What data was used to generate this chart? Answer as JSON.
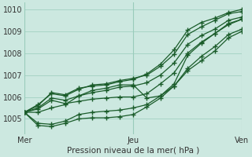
{
  "title": "",
  "xlabel": "Pression niveau de la mer( hPa )",
  "ylabel": "",
  "bg_color": "#cce8e0",
  "grid_color": "#99ccbb",
  "line_color": "#1a5c2a",
  "x_ticks": [
    0,
    8,
    16
  ],
  "x_tick_labels": [
    "Mer",
    "Jeu",
    "Ven"
  ],
  "ylim": [
    1004.3,
    1010.3
  ],
  "xlim": [
    0,
    16
  ],
  "yticks": [
    1005,
    1006,
    1007,
    1008,
    1009,
    1010
  ],
  "series": [
    {
      "x": [
        0,
        1,
        2,
        3,
        4,
        5,
        6,
        7,
        8,
        9,
        10,
        11,
        12,
        13,
        14,
        15,
        16
      ],
      "y": [
        1005.3,
        1005.6,
        1006.2,
        1006.1,
        1006.4,
        1006.5,
        1006.55,
        1006.7,
        1006.8,
        1007.05,
        1007.5,
        1008.15,
        1009.05,
        1009.4,
        1009.6,
        1009.85,
        1010.0
      ]
    },
    {
      "x": [
        0,
        1,
        2,
        3,
        4,
        5,
        6,
        7,
        8,
        9,
        10,
        11,
        12,
        13,
        14,
        15,
        16
      ],
      "y": [
        1005.3,
        1005.65,
        1006.15,
        1006.05,
        1006.35,
        1006.55,
        1006.6,
        1006.75,
        1006.85,
        1007.0,
        1007.4,
        1007.95,
        1008.85,
        1009.2,
        1009.5,
        1009.8,
        1009.9
      ]
    },
    {
      "x": [
        0,
        1,
        2,
        3,
        4,
        5,
        6,
        7,
        8,
        9,
        10,
        11,
        12,
        13,
        14,
        15,
        16
      ],
      "y": [
        1005.3,
        1005.5,
        1005.95,
        1005.85,
        1006.05,
        1006.2,
        1006.3,
        1006.45,
        1006.5,
        1006.65,
        1007.0,
        1007.55,
        1008.4,
        1008.8,
        1009.1,
        1009.5,
        1009.65
      ]
    },
    {
      "x": [
        0,
        1,
        2,
        3,
        4,
        5,
        6,
        7,
        8,
        9,
        10,
        11,
        12,
        13,
        14,
        15,
        16
      ],
      "y": [
        1005.3,
        1005.45,
        1005.85,
        1005.7,
        1005.8,
        1005.9,
        1005.95,
        1006.0,
        1006.0,
        1006.15,
        1006.6,
        1007.1,
        1008.0,
        1008.5,
        1008.9,
        1009.3,
        1009.55
      ]
    },
    {
      "x": [
        0,
        1,
        2,
        3,
        4,
        5,
        6,
        7,
        8,
        9,
        10,
        11,
        12,
        13,
        14,
        15,
        16
      ],
      "y": [
        1005.3,
        1004.8,
        1004.75,
        1004.9,
        1005.2,
        1005.3,
        1005.35,
        1005.4,
        1005.5,
        1005.65,
        1006.05,
        1006.5,
        1007.3,
        1007.85,
        1008.3,
        1008.85,
        1009.1
      ]
    },
    {
      "x": [
        0,
        1,
        2,
        3,
        4,
        5,
        6,
        7,
        8,
        9,
        10,
        11,
        12,
        13,
        14,
        15,
        16
      ],
      "y": [
        1005.3,
        1004.7,
        1004.65,
        1004.8,
        1005.0,
        1005.05,
        1005.05,
        1005.1,
        1005.2,
        1005.55,
        1005.95,
        1006.5,
        1007.2,
        1007.65,
        1008.1,
        1008.7,
        1009.0
      ]
    },
    {
      "x": [
        0,
        1,
        2,
        3,
        4,
        5,
        6,
        7,
        8,
        9,
        10,
        11,
        12,
        13,
        14,
        15,
        16
      ],
      "y": [
        1005.3,
        1005.3,
        1005.5,
        1005.65,
        1006.05,
        1006.3,
        1006.4,
        1006.55,
        1006.55,
        1005.95,
        1006.05,
        1006.6,
        1007.9,
        1008.45,
        1008.9,
        1009.35,
        1009.55
      ]
    }
  ]
}
